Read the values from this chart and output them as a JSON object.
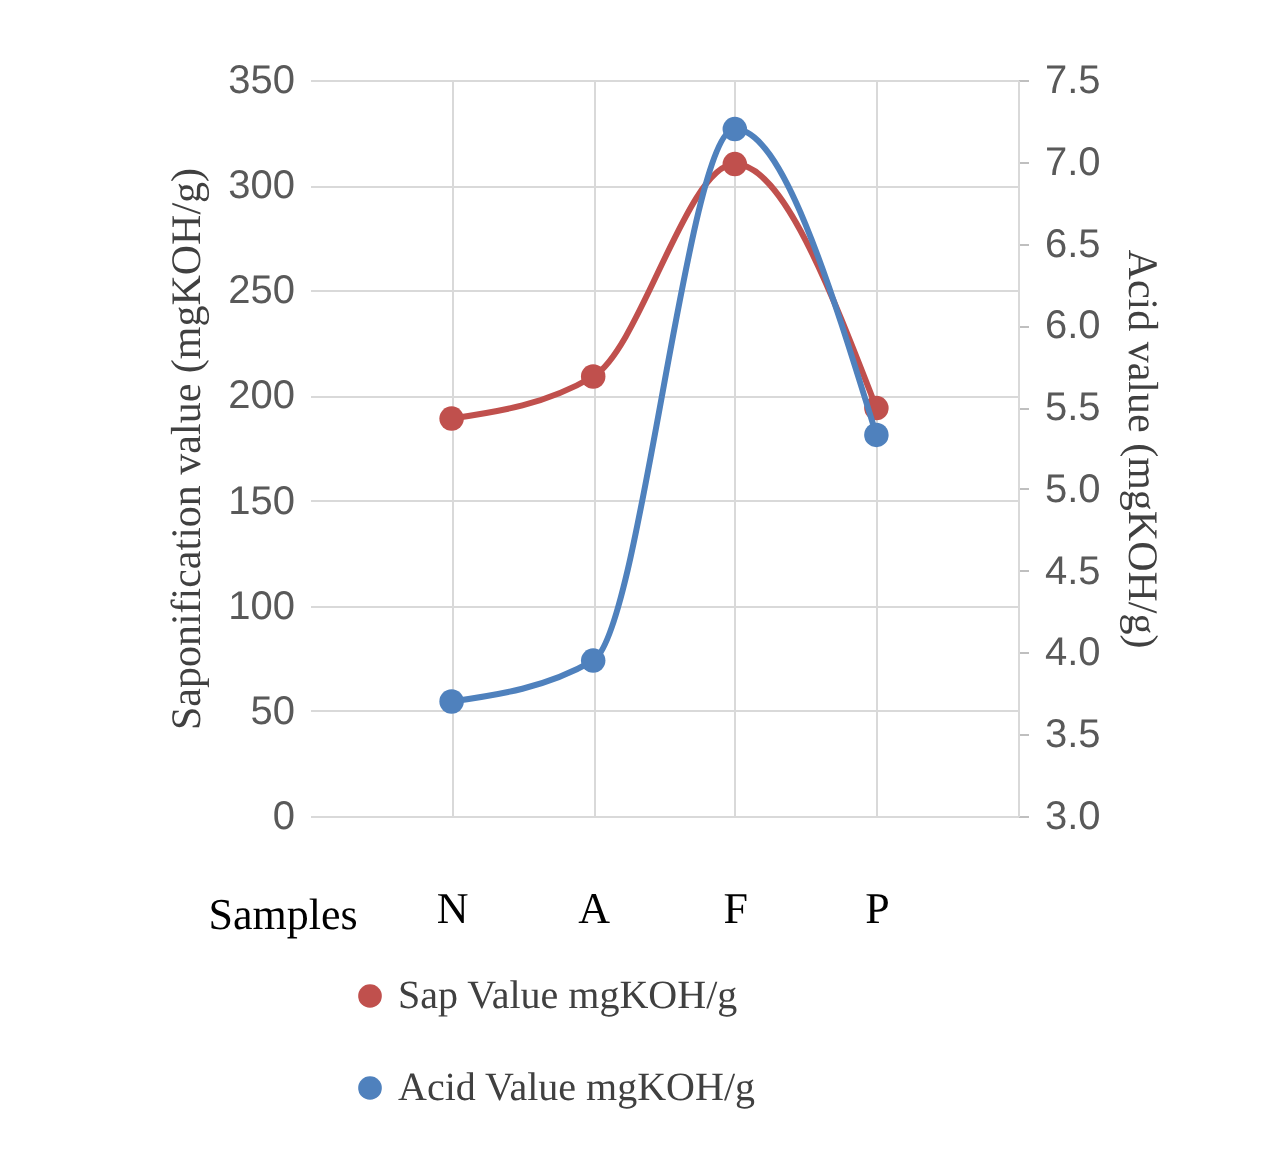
{
  "chart_data": {
    "type": "line",
    "xlabel": "Samples",
    "ylabel": "Saponification value (mgKOH/g)",
    "y2label": "Acid value (mgKOH/g)",
    "categories": [
      "N",
      "A",
      "F",
      "P"
    ],
    "series": [
      {
        "name": "Sap Value mgKOH/g",
        "color": "#c0504d",
        "values": [
          189,
          209,
          310,
          194
        ]
      },
      {
        "name": "Acid Value  mgKOH/g",
        "color": "#4f81bd",
        "axis": "y2",
        "values": [
          3.7,
          3.95,
          7.2,
          5.33
        ]
      }
    ],
    "ylim": [
      0,
      350
    ],
    "yticks": [
      0,
      50,
      100,
      150,
      200,
      250,
      300,
      350
    ],
    "y2lim": [
      3.0,
      7.5
    ],
    "y2ticks": [
      {
        "value": 3.0,
        "label": "3.0"
      },
      3.5,
      {
        "value": 4.0,
        "label": "4.0"
      },
      4.5,
      {
        "value": 5.0,
        "label": "5.0"
      },
      5.5,
      {
        "value": 6.0,
        "label": "6.0"
      },
      6.5,
      {
        "value": 7.0,
        "label": "7.0"
      },
      7.5
    ],
    "grid": true,
    "legend": "bottom",
    "marker": "circle",
    "line_style": "solid"
  }
}
